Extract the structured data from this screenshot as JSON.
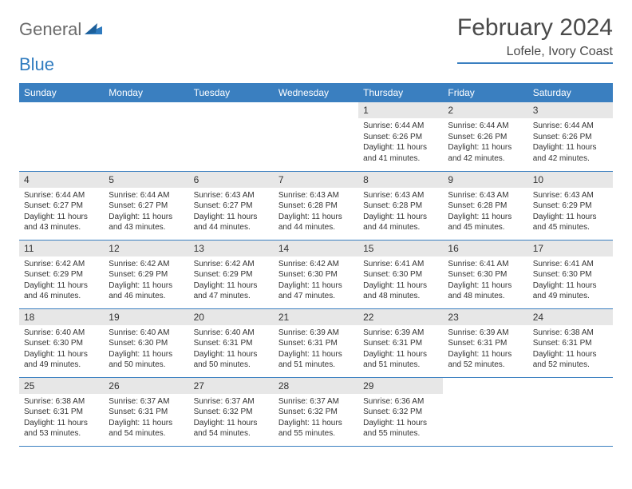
{
  "logo": {
    "general": "General",
    "blue": "Blue"
  },
  "title": "February 2024",
  "location": "Lofele, Ivory Coast",
  "theme": {
    "headerBg": "#3a7fc0",
    "headerText": "#ffffff",
    "dayNumBg": "#e7e7e7",
    "borderColor": "#3a7fc0"
  },
  "dayHeaders": [
    "Sunday",
    "Monday",
    "Tuesday",
    "Wednesday",
    "Thursday",
    "Friday",
    "Saturday"
  ],
  "weeks": [
    [
      null,
      null,
      null,
      null,
      {
        "n": "1",
        "sr": "6:44 AM",
        "ss": "6:26 PM",
        "dl": "11 hours and 41 minutes."
      },
      {
        "n": "2",
        "sr": "6:44 AM",
        "ss": "6:26 PM",
        "dl": "11 hours and 42 minutes."
      },
      {
        "n": "3",
        "sr": "6:44 AM",
        "ss": "6:26 PM",
        "dl": "11 hours and 42 minutes."
      }
    ],
    [
      {
        "n": "4",
        "sr": "6:44 AM",
        "ss": "6:27 PM",
        "dl": "11 hours and 43 minutes."
      },
      {
        "n": "5",
        "sr": "6:44 AM",
        "ss": "6:27 PM",
        "dl": "11 hours and 43 minutes."
      },
      {
        "n": "6",
        "sr": "6:43 AM",
        "ss": "6:27 PM",
        "dl": "11 hours and 44 minutes."
      },
      {
        "n": "7",
        "sr": "6:43 AM",
        "ss": "6:28 PM",
        "dl": "11 hours and 44 minutes."
      },
      {
        "n": "8",
        "sr": "6:43 AM",
        "ss": "6:28 PM",
        "dl": "11 hours and 44 minutes."
      },
      {
        "n": "9",
        "sr": "6:43 AM",
        "ss": "6:28 PM",
        "dl": "11 hours and 45 minutes."
      },
      {
        "n": "10",
        "sr": "6:43 AM",
        "ss": "6:29 PM",
        "dl": "11 hours and 45 minutes."
      }
    ],
    [
      {
        "n": "11",
        "sr": "6:42 AM",
        "ss": "6:29 PM",
        "dl": "11 hours and 46 minutes."
      },
      {
        "n": "12",
        "sr": "6:42 AM",
        "ss": "6:29 PM",
        "dl": "11 hours and 46 minutes."
      },
      {
        "n": "13",
        "sr": "6:42 AM",
        "ss": "6:29 PM",
        "dl": "11 hours and 47 minutes."
      },
      {
        "n": "14",
        "sr": "6:42 AM",
        "ss": "6:30 PM",
        "dl": "11 hours and 47 minutes."
      },
      {
        "n": "15",
        "sr": "6:41 AM",
        "ss": "6:30 PM",
        "dl": "11 hours and 48 minutes."
      },
      {
        "n": "16",
        "sr": "6:41 AM",
        "ss": "6:30 PM",
        "dl": "11 hours and 48 minutes."
      },
      {
        "n": "17",
        "sr": "6:41 AM",
        "ss": "6:30 PM",
        "dl": "11 hours and 49 minutes."
      }
    ],
    [
      {
        "n": "18",
        "sr": "6:40 AM",
        "ss": "6:30 PM",
        "dl": "11 hours and 49 minutes."
      },
      {
        "n": "19",
        "sr": "6:40 AM",
        "ss": "6:30 PM",
        "dl": "11 hours and 50 minutes."
      },
      {
        "n": "20",
        "sr": "6:40 AM",
        "ss": "6:31 PM",
        "dl": "11 hours and 50 minutes."
      },
      {
        "n": "21",
        "sr": "6:39 AM",
        "ss": "6:31 PM",
        "dl": "11 hours and 51 minutes."
      },
      {
        "n": "22",
        "sr": "6:39 AM",
        "ss": "6:31 PM",
        "dl": "11 hours and 51 minutes."
      },
      {
        "n": "23",
        "sr": "6:39 AM",
        "ss": "6:31 PM",
        "dl": "11 hours and 52 minutes."
      },
      {
        "n": "24",
        "sr": "6:38 AM",
        "ss": "6:31 PM",
        "dl": "11 hours and 52 minutes."
      }
    ],
    [
      {
        "n": "25",
        "sr": "6:38 AM",
        "ss": "6:31 PM",
        "dl": "11 hours and 53 minutes."
      },
      {
        "n": "26",
        "sr": "6:37 AM",
        "ss": "6:31 PM",
        "dl": "11 hours and 54 minutes."
      },
      {
        "n": "27",
        "sr": "6:37 AM",
        "ss": "6:32 PM",
        "dl": "11 hours and 54 minutes."
      },
      {
        "n": "28",
        "sr": "6:37 AM",
        "ss": "6:32 PM",
        "dl": "11 hours and 55 minutes."
      },
      {
        "n": "29",
        "sr": "6:36 AM",
        "ss": "6:32 PM",
        "dl": "11 hours and 55 minutes."
      },
      null,
      null
    ]
  ],
  "labels": {
    "sunrise": "Sunrise:",
    "sunset": "Sunset:",
    "daylight": "Daylight:"
  }
}
